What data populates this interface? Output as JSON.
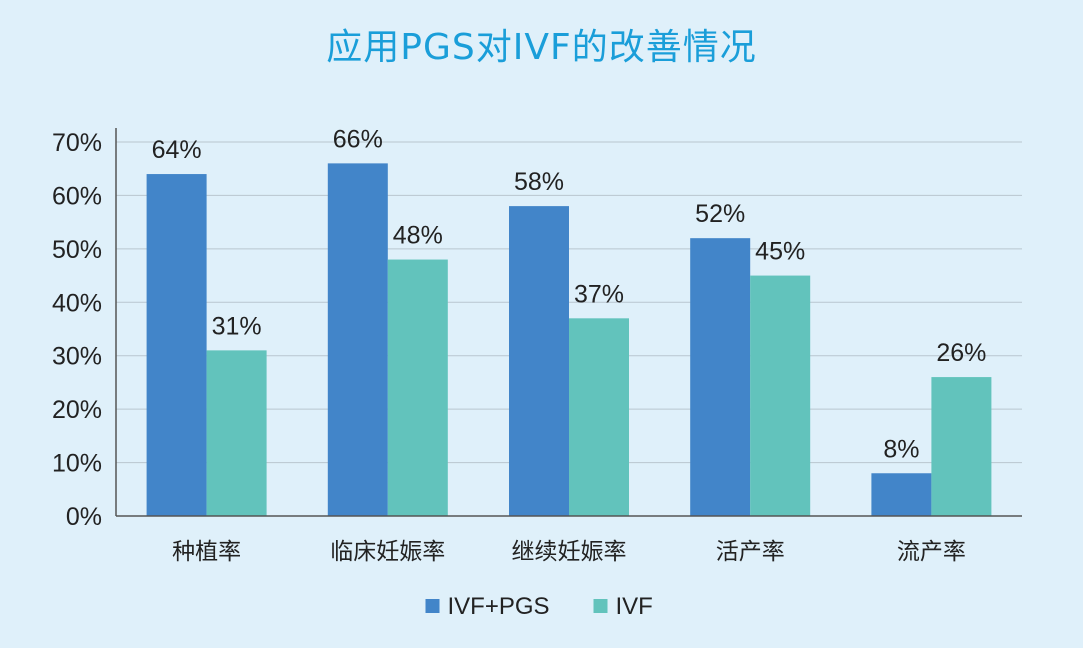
{
  "title": "应用PGS对IVF的改善情况",
  "colors": {
    "series_1": "#4285c9",
    "series_2": "#62c3bc",
    "grid": "#b9c6cf",
    "axis": "#555555"
  },
  "chart_data": {
    "type": "bar",
    "title": "应用PGS对IVF的改善情况",
    "categories": [
      "种植率",
      "临床妊娠率",
      "继续妊娠率",
      "活产率",
      "流产率"
    ],
    "series": [
      {
        "name": "IVF+PGS",
        "values": [
          64,
          66,
          58,
          52,
          8
        ],
        "labels": [
          "64%",
          "66%",
          "58%",
          "52%",
          "8%"
        ]
      },
      {
        "name": "IVF",
        "values": [
          31,
          48,
          37,
          45,
          26
        ],
        "labels": [
          "31%",
          "48%",
          "37%",
          "45%",
          "26%"
        ]
      }
    ],
    "ytick_labels": [
      "0%",
      "10%",
      "20%",
      "30%",
      "40%",
      "50%",
      "60%",
      "70%"
    ],
    "yticks": [
      0,
      10,
      20,
      30,
      40,
      50,
      60,
      70
    ],
    "ylim": [
      0,
      70
    ],
    "grid": true,
    "legend_position": "bottom",
    "xlabel": "",
    "ylabel": ""
  }
}
